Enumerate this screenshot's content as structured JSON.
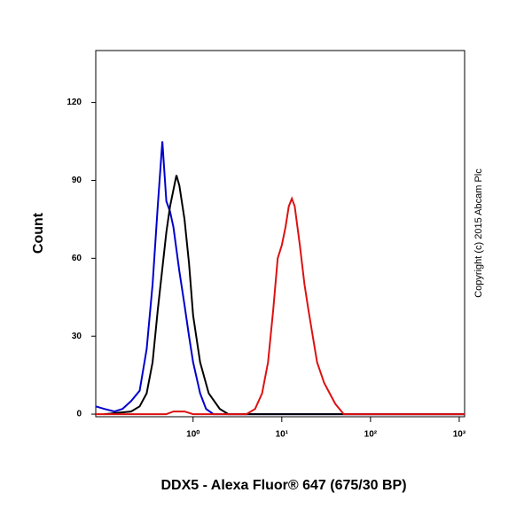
{
  "chart_data": {
    "type": "line",
    "x_label": "DDX5 - Alexa Fluor® 647 (675/30 BP)",
    "y_label": "Count",
    "annotation": "Copyright (c) 2015 Abcam Plc",
    "x_scale": "log",
    "xlim": [
      0.08,
      1150
    ],
    "ylim": [
      -1,
      140
    ],
    "xticks": [
      {
        "value": 1,
        "label": "10⁰"
      },
      {
        "value": 10,
        "label": "10¹"
      },
      {
        "value": 100,
        "label": "10²"
      },
      {
        "value": 1000,
        "label": "10³"
      }
    ],
    "yticks": [
      0,
      30,
      60,
      90,
      120
    ],
    "series": [
      {
        "color": "#0000cc",
        "x": [
          0.08,
          0.1,
          0.13,
          0.16,
          0.2,
          0.25,
          0.3,
          0.35,
          0.4,
          0.45,
          0.5,
          0.55,
          0.6,
          0.7,
          0.8,
          0.9,
          1.0,
          1.2,
          1.4,
          1.7,
          3,
          1150
        ],
        "values": [
          3,
          2,
          1,
          2,
          5,
          9,
          25,
          50,
          80,
          105,
          82,
          78,
          72,
          55,
          42,
          30,
          20,
          8,
          2,
          0,
          0,
          0
        ]
      },
      {
        "color": "#000000",
        "x": [
          0.1,
          0.2,
          0.25,
          0.3,
          0.35,
          0.4,
          0.5,
          0.55,
          0.65,
          0.7,
          0.8,
          0.9,
          1.0,
          1.2,
          1.5,
          2,
          2.5,
          1150
        ],
        "values": [
          0,
          1,
          3,
          8,
          20,
          40,
          70,
          80,
          92,
          88,
          75,
          58,
          38,
          20,
          8,
          2,
          0,
          0
        ]
      },
      {
        "color": "#dd1111",
        "x": [
          0.08,
          0.5,
          0.6,
          0.8,
          1,
          4,
          5,
          6,
          7,
          8,
          9,
          10,
          11,
          12,
          13,
          14,
          16,
          18,
          20,
          25,
          30,
          40,
          50,
          1150
        ],
        "values": [
          0,
          0,
          1,
          1,
          0,
          0,
          2,
          8,
          20,
          40,
          60,
          65,
          72,
          80,
          83,
          80,
          65,
          50,
          40,
          20,
          12,
          4,
          0,
          0
        ]
      }
    ]
  }
}
